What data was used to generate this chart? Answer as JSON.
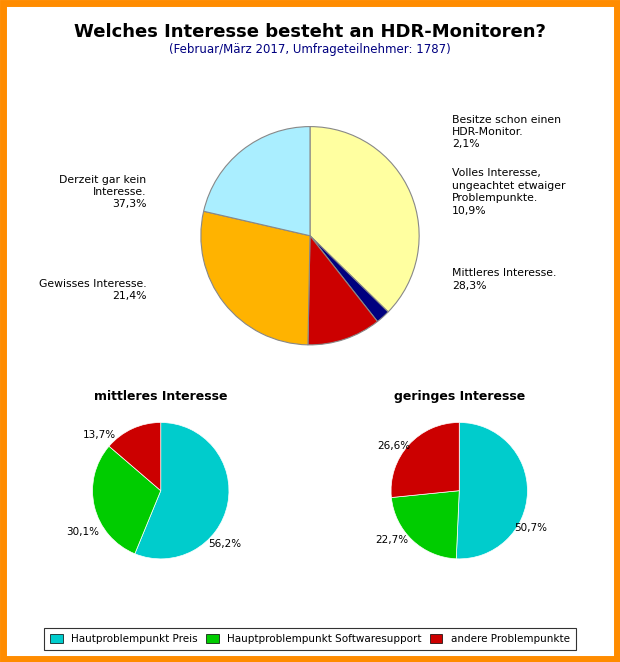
{
  "title": "Welches Interesse besteht an HDR-Monitoren?",
  "subtitle": "(Februar/März 2017, Umfrageteilnehmer: 1787)",
  "main_pie": {
    "values": [
      37.3,
      2.1,
      10.9,
      28.3,
      21.4
    ],
    "colors": [
      "#FFFFA0",
      "#00007F",
      "#CC0000",
      "#FFB300",
      "#AAEEFF"
    ],
    "startangle": 90
  },
  "bottom_left_pie": {
    "values": [
      56.2,
      30.1,
      13.7
    ],
    "labels": [
      "56,2%",
      "30,1%",
      "13,7%"
    ],
    "colors": [
      "#00CCCC",
      "#00CC00",
      "#CC0000"
    ],
    "title": "mittleres Interesse",
    "startangle": 90
  },
  "bottom_right_pie": {
    "values": [
      50.7,
      22.7,
      26.6
    ],
    "labels": [
      "50,7%",
      "22,7%",
      "26,6%"
    ],
    "colors": [
      "#00CCCC",
      "#00CC00",
      "#CC0000"
    ],
    "title": "geringes Interesse",
    "startangle": 90
  },
  "legend_labels": [
    "Hautproblempunkt Preis",
    "Hauptproblempunkt Softwaresupport",
    "andere Problempunkte"
  ],
  "legend_colors": [
    "#00CCCC",
    "#00CC00",
    "#CC0000"
  ],
  "background_color": "#FFFFFF",
  "border_color": "#FF8C00",
  "title_color": "#000000",
  "subtitle_color": "#000080"
}
